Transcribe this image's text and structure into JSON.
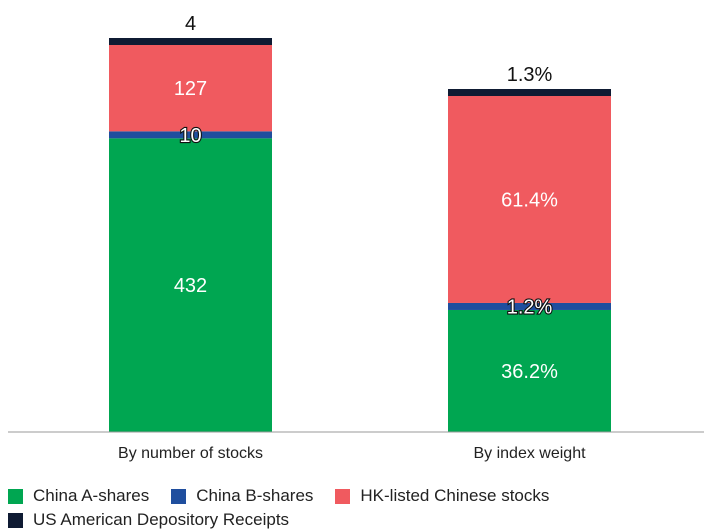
{
  "chart_data": {
    "type": "bar",
    "stacked": true,
    "categories": [
      "By number of stocks",
      "By index weight"
    ],
    "series": [
      {
        "name": "China A-shares",
        "color": "#00a651",
        "values": [
          432,
          36.2
        ],
        "labels": [
          "432",
          "36.2%"
        ]
      },
      {
        "name": "China B-shares",
        "color": "#1f4e9e",
        "values": [
          10,
          1.2
        ],
        "labels": [
          "10",
          "1.2%"
        ]
      },
      {
        "name": "HK-listed Chinese stocks",
        "color": "#f05a5f",
        "values": [
          127,
          61.4
        ],
        "labels": [
          "127",
          "61.4%"
        ]
      },
      {
        "name": "US American Depository Receipts",
        "color": "#0f1b33",
        "values": [
          4,
          1.3
        ],
        "labels": [
          "4",
          "1.3%"
        ]
      }
    ],
    "grid": false,
    "legend_position": "bottom-left"
  }
}
